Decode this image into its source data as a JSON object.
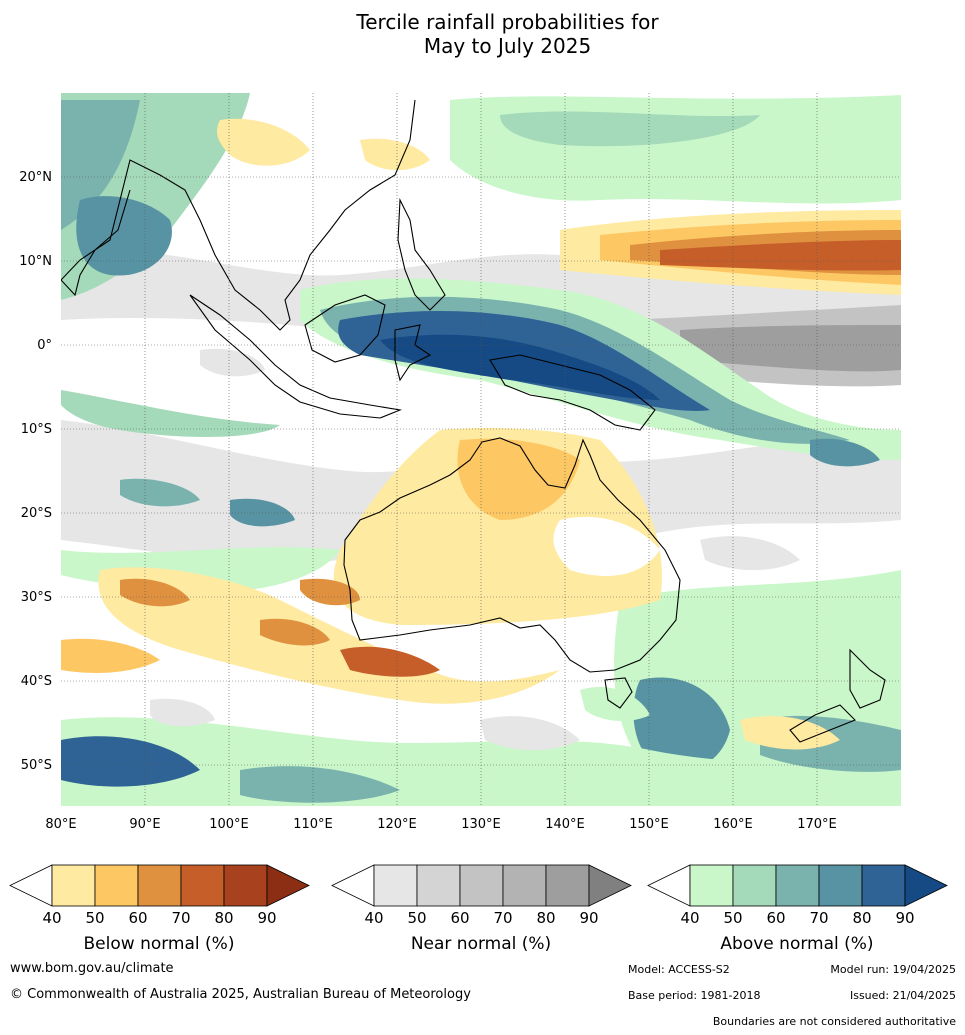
{
  "title_line1": "Tercile rainfall probabilities for",
  "title_line2": "May to July 2025",
  "map": {
    "lon_range": [
      80,
      180
    ],
    "lat_range": [
      -55,
      30
    ],
    "lat_labels": [
      "20°N",
      "10°N",
      "0°",
      "10°S",
      "20°S",
      "30°S",
      "40°S",
      "50°S"
    ],
    "lon_labels": [
      "80°E",
      "90°E",
      "100°E",
      "110°E",
      "120°E",
      "130°E",
      "140°E",
      "150°E",
      "160°E",
      "170°E"
    ]
  },
  "colorbars": [
    {
      "title": "Below normal (%)",
      "ticks": [
        "40",
        "50",
        "60",
        "70",
        "80",
        "90"
      ],
      "colors": [
        "#ffffff",
        "#feeaa0",
        "#fdc863",
        "#e0913f",
        "#c65e2a",
        "#a8411e",
        "#8b2e13"
      ]
    },
    {
      "title": "Near normal (%)",
      "ticks": [
        "40",
        "50",
        "60",
        "70",
        "80",
        "90"
      ],
      "colors": [
        "#ffffff",
        "#e6e6e6",
        "#d4d4d4",
        "#c3c3c3",
        "#b3b3b3",
        "#9e9e9e",
        "#808080"
      ]
    },
    {
      "title": "Above normal (%)",
      "ticks": [
        "40",
        "50",
        "60",
        "70",
        "80",
        "90"
      ],
      "colors": [
        "#ffffff",
        "#c9f7c9",
        "#a4d9b9",
        "#7ab3ae",
        "#5793a2",
        "#2f6396",
        "#154a85"
      ]
    }
  ],
  "footer": {
    "website": "www.bom.gov.au/climate",
    "copyright": "© Commonwealth of Australia 2025, Australian Bureau of Meteorology",
    "model": "Model: ACCESS-S2",
    "model_run": "Model run: 19/04/2025",
    "base_period": "Base period: 1981-2018",
    "issued": "Issued: 21/04/2025",
    "boundaries": "Boundaries are not considered authoritative"
  }
}
